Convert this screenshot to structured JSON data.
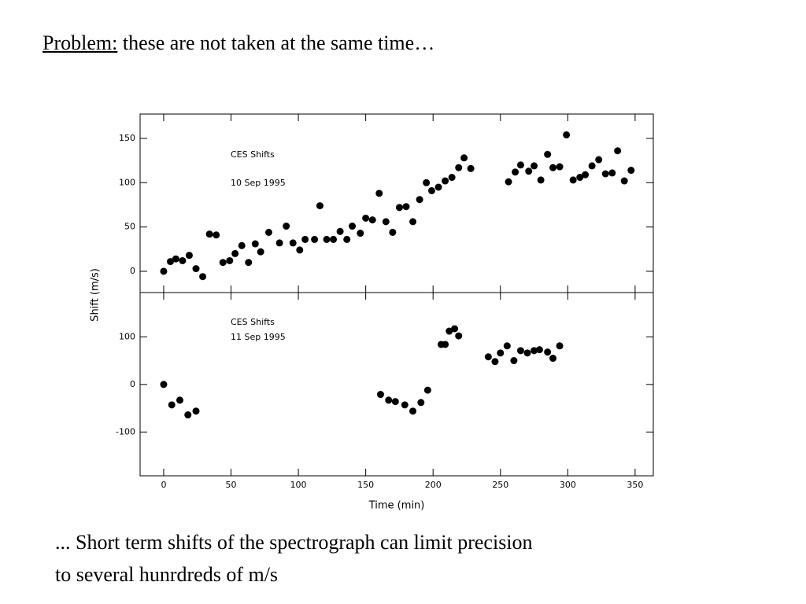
{
  "slide": {
    "title_label": "Problem:",
    "title_text": "these are not taken at the same time…",
    "caption": [
      "... Short term shifts of the spectrograph can limit precision",
      "to several hunrdreds of m/s"
    ]
  },
  "chart_data": [
    {
      "type": "scatter",
      "annotations": [
        "CES Shifts",
        "10 Sep 1995"
      ],
      "ylabel": "Shift (m/s)",
      "color": "#000000",
      "xlim": [
        -17.5,
        363.5
      ],
      "xticks": [
        0,
        50,
        100,
        150,
        200,
        250,
        300,
        350
      ],
      "ylim": [
        -24,
        177.5
      ],
      "yticks": [
        0,
        50,
        100,
        150
      ],
      "x": [
        0,
        5,
        9,
        14,
        19,
        24,
        29,
        34,
        39,
        44,
        49,
        53,
        58,
        63,
        68,
        72,
        78,
        86,
        91,
        96,
        101,
        105,
        112,
        116,
        121,
        126,
        131,
        136,
        140,
        146,
        150,
        155,
        160,
        165,
        170,
        175,
        180,
        185,
        190,
        195,
        199,
        204,
        209,
        214,
        219,
        223,
        228,
        256,
        261,
        265,
        271,
        275,
        280,
        285,
        289,
        294,
        299,
        304,
        309,
        313,
        318,
        323,
        328,
        333,
        337,
        342,
        347
      ],
      "values": [
        0,
        11,
        14,
        12,
        18,
        3,
        -6,
        42,
        41,
        10,
        12,
        20,
        29,
        10,
        31,
        22,
        44,
        32,
        51,
        32,
        24,
        36,
        36,
        74,
        36,
        36,
        45,
        36,
        51,
        43,
        60,
        58,
        88,
        56,
        44,
        72,
        73,
        56,
        81,
        100,
        91,
        95,
        102,
        106,
        117,
        128,
        116,
        101,
        112,
        120,
        113,
        119,
        103,
        132,
        117,
        118,
        154,
        103,
        106,
        109,
        119,
        126,
        110,
        111,
        136,
        102,
        114
      ]
    },
    {
      "type": "scatter",
      "annotations": [
        "CES Shifts",
        "11 Sep 1995"
      ],
      "xlabel": "Time (min)",
      "color": "#000000",
      "xlim": [
        -17.5,
        363.5
      ],
      "xticks": [
        0,
        50,
        100,
        150,
        200,
        250,
        300,
        350
      ],
      "ylim": [
        -192,
        193
      ],
      "yticks": [
        -100,
        0,
        100
      ],
      "x": [
        0,
        6,
        12,
        18,
        24,
        161,
        167,
        172,
        179,
        185,
        191,
        196,
        206,
        209,
        212,
        216,
        219,
        241,
        246,
        250,
        255,
        260,
        265,
        270,
        275,
        279,
        285,
        289,
        294
      ],
      "values": [
        0,
        -43,
        -33,
        -64,
        -56,
        -21,
        -33,
        -36,
        -43,
        -56,
        -38,
        -12,
        84,
        84,
        112,
        117,
        102,
        58,
        48,
        66,
        81,
        50,
        71,
        66,
        71,
        73,
        68,
        55,
        81
      ]
    }
  ]
}
